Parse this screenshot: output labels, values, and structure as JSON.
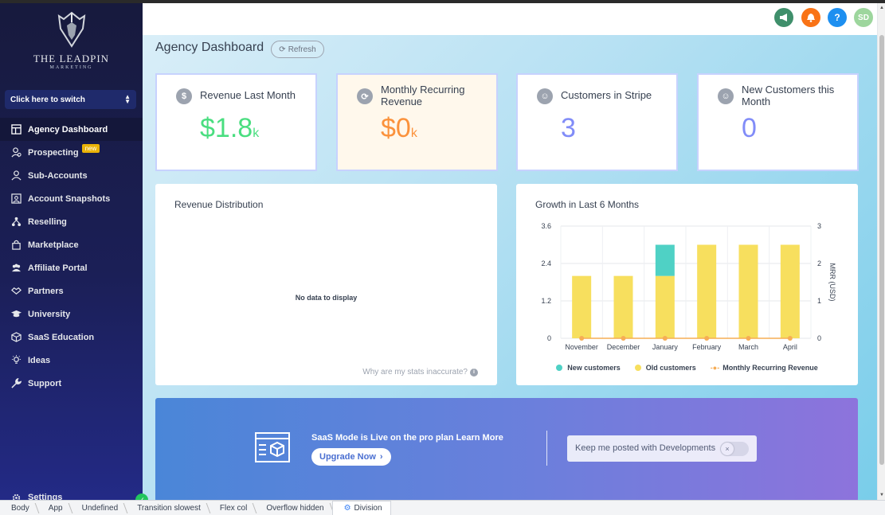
{
  "sidebar": {
    "brand_name": "THE LEADPIN",
    "brand_sub": "MARKETING",
    "switcher_label": "Click here to switch",
    "items": [
      {
        "label": "Agency Dashboard",
        "icon": "dashboard-icon",
        "active": true
      },
      {
        "label": "Prospecting",
        "icon": "prospecting-icon",
        "badge": "new"
      },
      {
        "label": "Sub-Accounts",
        "icon": "user-icon"
      },
      {
        "label": "Account Snapshots",
        "icon": "snapshot-icon"
      },
      {
        "label": "Reselling",
        "icon": "reselling-icon"
      },
      {
        "label": "Marketplace",
        "icon": "bag-icon"
      },
      {
        "label": "Affiliate Portal",
        "icon": "users-icon"
      },
      {
        "label": "Partners",
        "icon": "handshake-icon"
      },
      {
        "label": "University",
        "icon": "graduation-cap-icon"
      },
      {
        "label": "SaaS Education",
        "icon": "box-icon"
      },
      {
        "label": "Ideas",
        "icon": "lightbulb-icon"
      },
      {
        "label": "Support",
        "icon": "wrench-icon"
      }
    ],
    "settings_label": "Settings"
  },
  "header": {
    "avatar_initials": "SD",
    "help_label": "?",
    "colors": {
      "announce": "#3f8f6b",
      "notify": "#f97316",
      "help": "#1d8ff0",
      "avatar": "#9dd69d"
    }
  },
  "page": {
    "title": "Agency Dashboard",
    "refresh_label": "Refresh"
  },
  "stats": [
    {
      "title": "Revenue Last Month",
      "value": "$1.8",
      "suffix": "k",
      "color": "#4ade80",
      "icon": "dollar-icon"
    },
    {
      "title": "Monthly Recurring Revenue",
      "value": "$0",
      "suffix": "k",
      "color": "#fb923c",
      "icon": "refresh-icon"
    },
    {
      "title": "Customers in Stripe",
      "value": "3",
      "suffix": "",
      "color": "#818cf8",
      "icon": "customer-icon"
    },
    {
      "title": "New Customers this Month",
      "value": "0",
      "suffix": "",
      "color": "#818cf8",
      "icon": "new-customer-icon"
    }
  ],
  "revenue_distribution": {
    "title": "Revenue Distribution",
    "empty_text": "No data to display",
    "help_link": "Why are my stats inaccurate?"
  },
  "chart_data": {
    "type": "bar",
    "title": "Growth in Last 6 Months",
    "categories": [
      "November",
      "December",
      "January",
      "February",
      "March",
      "April"
    ],
    "series": [
      {
        "name": "Old customers",
        "values": [
          2,
          2,
          2,
          3,
          3,
          3
        ],
        "color": "#f7df5e"
      },
      {
        "name": "New customers",
        "values": [
          0,
          0,
          1,
          0,
          0,
          0
        ],
        "color": "#4fd1c5"
      },
      {
        "name": "Monthly Recurring Revenue",
        "values": [
          0,
          0,
          0,
          0,
          0,
          0
        ],
        "color": "#f6ad55",
        "type": "line",
        "axis": "right"
      }
    ],
    "y_ticks": [
      "0",
      "1.2",
      "2.4",
      "3.6"
    ],
    "ylim": [
      0,
      3.6
    ],
    "y2_ticks": [
      "0",
      "1",
      "2",
      "3"
    ],
    "y2lim": [
      0,
      3
    ],
    "y2label": "MRR (USD)",
    "legend": [
      "New customers",
      "Old customers",
      "Monthly Recurring Revenue"
    ],
    "stacked": true,
    "grid": true,
    "legend_position": "bottom"
  },
  "banner": {
    "text": "SaaS Mode is Live on the pro plan",
    "learn_more": "Learn More",
    "upgrade_label": "Upgrade Now",
    "keep_posted": "Keep me posted with Developments"
  },
  "breadcrumbs": [
    "Body",
    "App",
    "Undefined",
    "Transition slowest",
    "Flex col",
    "Overflow hidden",
    "Division"
  ]
}
